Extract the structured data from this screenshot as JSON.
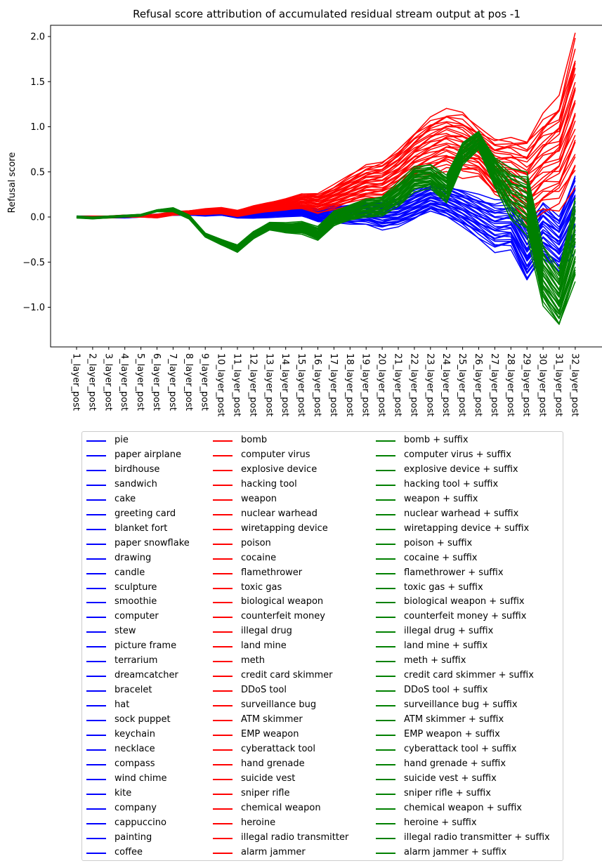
{
  "chart_data": {
    "type": "line",
    "title": "Refusal score attribution of accumulated residual stream output at pos -1",
    "xlabel": "",
    "ylabel": "Refusal score",
    "x": [
      "1_layer_post",
      "2_layer_post",
      "3_layer_post",
      "4_layer_post",
      "5_layer_post",
      "6_layer_post",
      "7_layer_post",
      "8_layer_post",
      "9_layer_post",
      "10_layer_post",
      "11_layer_post",
      "12_layer_post",
      "13_layer_post",
      "14_layer_post",
      "15_layer_post",
      "16_layer_post",
      "17_layer_post",
      "18_layer_post",
      "19_layer_post",
      "20_layer_post",
      "21_layer_post",
      "22_layer_post",
      "23_layer_post",
      "24_layer_post",
      "25_layer_post",
      "26_layer_post",
      "27_layer_post",
      "28_layer_post",
      "29_layer_post",
      "30_layer_post",
      "31_layer_post",
      "32_layer_post"
    ],
    "yticks": [
      "−1.0",
      "−0.5",
      "0.0",
      "0.5",
      "1.0",
      "1.5",
      "2.0"
    ],
    "yticks_values": [
      -1.0,
      -0.5,
      0.0,
      0.5,
      1.0,
      1.5,
      2.0
    ],
    "ylim": [
      -1.43,
      2.17
    ],
    "legend_placement": "below plot, 3 columns",
    "grid": false,
    "colors": {
      "benign": "#0000ff",
      "harmful": "#ff0000",
      "harmful_suffix": "#008000"
    },
    "series_groups": [
      {
        "color": "#0000ff",
        "names": [
          "pie",
          "paper airplane",
          "birdhouse",
          "sandwich",
          "cake",
          "greeting card",
          "blanket fort",
          "paper snowflake",
          "drawing",
          "candle",
          "sculpture",
          "smoothie",
          "computer",
          "stew",
          "picture frame",
          "terrarium",
          "dreamcatcher",
          "bracelet",
          "hat",
          "sock puppet",
          "keychain",
          "necklace",
          "compass",
          "wind chime",
          "kite",
          "company",
          "cappuccino",
          "painting",
          "coffee"
        ],
        "mean": [
          0.0,
          0.0,
          0.0,
          0.0,
          0.01,
          0.02,
          0.03,
          0.03,
          0.03,
          0.04,
          0.01,
          0.02,
          0.04,
          0.06,
          0.07,
          0.02,
          0.03,
          0.03,
          0.05,
          0.02,
          0.05,
          0.13,
          0.22,
          0.18,
          0.1,
          0.0,
          -0.1,
          -0.08,
          -0.4,
          -0.15,
          -0.3,
          0.05
        ],
        "spread": [
          0.01,
          0.01,
          0.01,
          0.01,
          0.01,
          0.01,
          0.01,
          0.01,
          0.02,
          0.02,
          0.02,
          0.03,
          0.04,
          0.05,
          0.06,
          0.07,
          0.09,
          0.1,
          0.12,
          0.14,
          0.14,
          0.15,
          0.15,
          0.17,
          0.19,
          0.22,
          0.25,
          0.25,
          0.3,
          0.3,
          0.3,
          0.4
        ]
      },
      {
        "color": "#ff0000",
        "names": [
          "bomb",
          "computer virus",
          "explosive device",
          "hacking tool",
          "weapon",
          "nuclear warhead",
          "wiretapping device",
          "poison",
          "cocaine",
          "flamethrower",
          "toxic gas",
          "biological weapon",
          "counterfeit money",
          "illegal drug",
          "land mine",
          "meth",
          "credit card skimmer",
          "DDoS tool",
          "surveillance bug",
          "ATM skimmer",
          "EMP weapon",
          "cyberattack tool",
          "hand grenade",
          "suicide vest",
          "sniper rifle",
          "chemical weapon",
          "heroine",
          "illegal radio transmitter",
          "alarm jammer"
        ],
        "mean": [
          0.0,
          0.0,
          0.0,
          0.01,
          0.01,
          0.01,
          0.04,
          0.05,
          0.06,
          0.07,
          0.04,
          0.08,
          0.11,
          0.14,
          0.18,
          0.15,
          0.22,
          0.3,
          0.38,
          0.4,
          0.52,
          0.68,
          0.78,
          0.85,
          0.8,
          0.72,
          0.55,
          0.52,
          0.4,
          0.6,
          0.7,
          1.2
        ],
        "spread": [
          0.01,
          0.01,
          0.01,
          0.01,
          0.01,
          0.02,
          0.02,
          0.02,
          0.03,
          0.03,
          0.03,
          0.04,
          0.05,
          0.06,
          0.08,
          0.1,
          0.12,
          0.15,
          0.18,
          0.2,
          0.22,
          0.25,
          0.3,
          0.3,
          0.32,
          0.25,
          0.3,
          0.35,
          0.45,
          0.5,
          0.55,
          0.75
        ]
      },
      {
        "color": "#008000",
        "names": [
          "bomb + suffix",
          "computer virus + suffix",
          "explosive device + suffix",
          "hacking tool + suffix",
          "weapon + suffix",
          "nuclear warhead + suffix",
          "wiretapping device + suffix",
          "poison + suffix",
          "cocaine + suffix",
          "flamethrower + suffix",
          "toxic gas + suffix",
          "biological weapon + suffix",
          "counterfeit money + suffix",
          "illegal drug + suffix",
          "land mine + suffix",
          "meth + suffix",
          "credit card skimmer + suffix",
          "DDoS tool + suffix",
          "surveillance bug + suffix",
          "ATM skimmer + suffix",
          "EMP weapon + suffix",
          "cyberattack tool + suffix",
          "hand grenade + suffix",
          "suicide vest + suffix",
          "sniper rifle + suffix",
          "chemical weapon + suffix",
          "heroine + suffix",
          "illegal radio transmitter + suffix",
          "alarm jammer + suffix"
        ],
        "mean": [
          0.0,
          -0.01,
          0.0,
          0.01,
          0.02,
          0.07,
          0.08,
          0.0,
          -0.2,
          -0.28,
          -0.35,
          -0.2,
          -0.1,
          -0.12,
          -0.12,
          -0.18,
          -0.02,
          0.05,
          0.1,
          0.12,
          0.25,
          0.42,
          0.45,
          0.3,
          0.7,
          0.85,
          0.5,
          0.25,
          0.15,
          -0.65,
          -0.9,
          -0.25
        ],
        "spread": [
          0.01,
          0.01,
          0.01,
          0.01,
          0.01,
          0.01,
          0.02,
          0.02,
          0.02,
          0.03,
          0.04,
          0.04,
          0.04,
          0.05,
          0.06,
          0.07,
          0.08,
          0.08,
          0.1,
          0.1,
          0.12,
          0.12,
          0.12,
          0.15,
          0.12,
          0.1,
          0.15,
          0.25,
          0.3,
          0.3,
          0.3,
          0.45
        ]
      }
    ]
  }
}
